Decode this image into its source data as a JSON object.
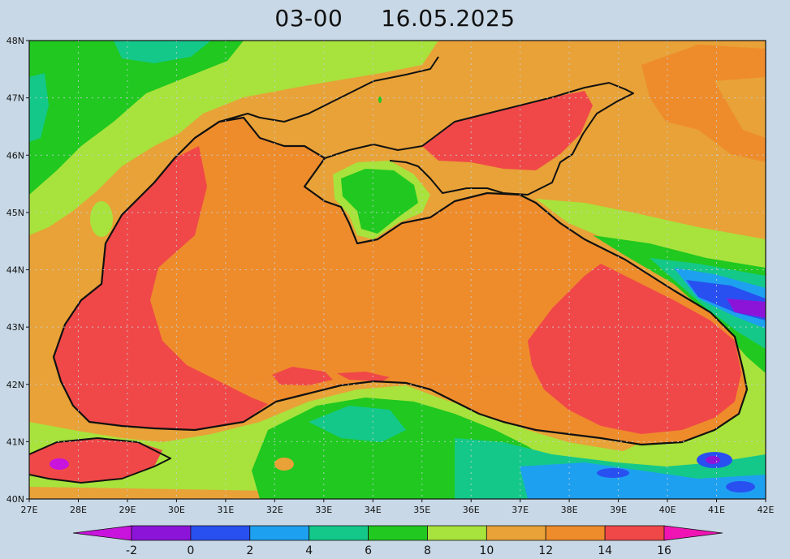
{
  "map": {
    "title_time": "03-00",
    "title_date": "16.05.2025",
    "lat_labels": [
      "48N",
      "47N",
      "46N",
      "45N",
      "44N",
      "43N",
      "42N",
      "41N",
      "40N"
    ],
    "lon_labels": [
      "27E",
      "28E",
      "29E",
      "30E",
      "31E",
      "32E",
      "33E",
      "34E",
      "35E",
      "36E",
      "37E",
      "38E",
      "39E",
      "40E",
      "41E",
      "42E"
    ],
    "grid": "dotted",
    "colors": {
      "sea_main": "#ee8c2c",
      "warm": "#f04848",
      "land_mild": "#e8a238",
      "land_cool": "#a8e23c",
      "green": "#20c820",
      "teal": "#14c88a",
      "sky": "#1ea0f0",
      "blue": "#2850f0",
      "violet": "#8c14d8",
      "coast": "#111111"
    }
  },
  "colorbar": {
    "labels": [
      "-2",
      "0",
      "2",
      "4",
      "6",
      "8",
      "10",
      "12",
      "14",
      "16"
    ],
    "colors": [
      "#c814dc",
      "#8c14d8",
      "#2850f0",
      "#1ea0f0",
      "#14c88a",
      "#20c820",
      "#a8e23c",
      "#e8a238",
      "#ee8c2c",
      "#f04848",
      "#f014b4"
    ]
  }
}
